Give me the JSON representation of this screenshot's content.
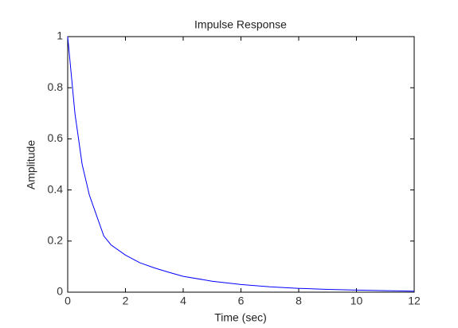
{
  "chart_data": {
    "type": "line",
    "title": "Impulse Response",
    "xlabel": "Time (sec)",
    "ylabel": "Amplitude",
    "x": [
      0,
      0.25,
      0.5,
      0.75,
      1,
      1.25,
      1.5,
      2,
      2.5,
      3,
      3.5,
      4,
      5,
      6,
      7,
      8,
      9,
      10,
      11,
      12
    ],
    "series": [
      {
        "color": "#0000ff",
        "values": [
          1,
          0.7,
          0.5,
          0.38,
          0.3,
          0.22,
          0.185,
          0.145,
          0.115,
          0.095,
          0.078,
          0.062,
          0.043,
          0.03,
          0.021,
          0.015,
          0.011,
          0.008,
          0.006,
          0.004
        ]
      }
    ],
    "xlim": [
      0,
      12
    ],
    "xticks": [
      0,
      2,
      4,
      6,
      8,
      10,
      12
    ],
    "ylim": [
      0,
      1
    ],
    "yticks": [
      0,
      0.2,
      0.4,
      0.6,
      0.8,
      1
    ]
  }
}
